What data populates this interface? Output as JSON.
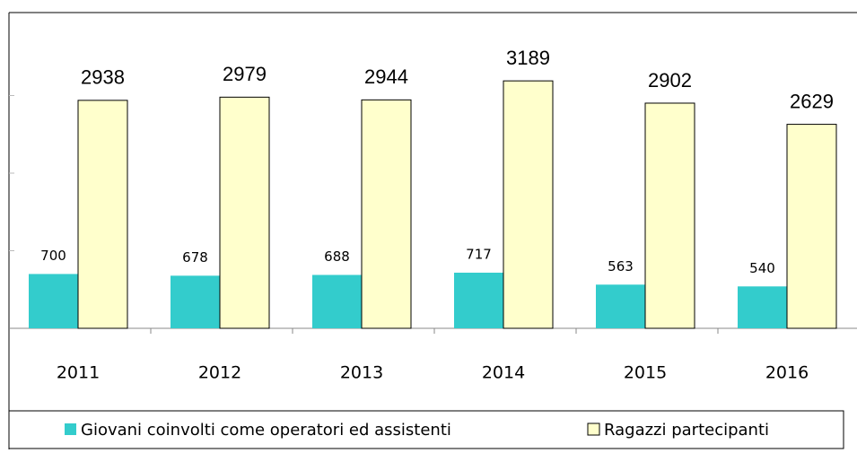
{
  "chart_data": {
    "type": "bar",
    "categories": [
      "2011",
      "2012",
      "2013",
      "2014",
      "2015",
      "2016"
    ],
    "series": [
      {
        "name": "Giovani coinvolti come operatori ed assistenti",
        "color": "#33cccc",
        "values": [
          700,
          678,
          688,
          717,
          563,
          540
        ]
      },
      {
        "name": "Ragazzi partecipanti",
        "color": "#ffffcc",
        "values": [
          2938,
          2979,
          2944,
          3189,
          2902,
          2629
        ]
      }
    ],
    "ylim": [
      0,
      4000
    ],
    "yticks": [
      0,
      1000,
      2000,
      3000,
      4000
    ],
    "grid": true,
    "legend": "bottom"
  }
}
